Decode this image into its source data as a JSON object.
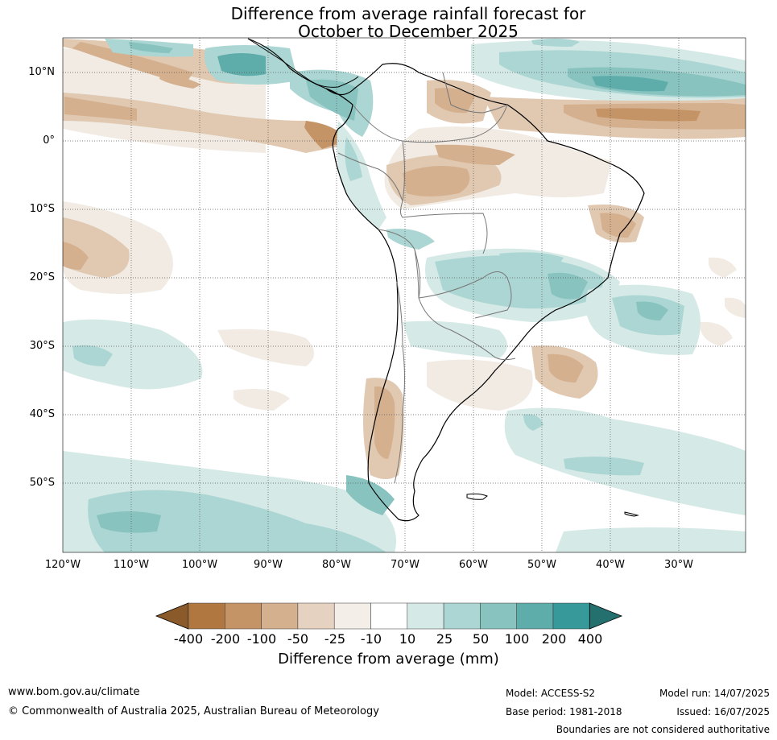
{
  "title_line1": "Difference from average rainfall forecast for",
  "title_line2": "October to December 2025",
  "lat_labels": [
    "10°N",
    "0°",
    "10°S",
    "20°S",
    "30°S",
    "40°S",
    "50°S"
  ],
  "lon_labels": [
    "120°W",
    "110°W",
    "100°W",
    "90°W",
    "80°W",
    "70°W",
    "60°W",
    "50°W",
    "40°W",
    "30°W"
  ],
  "colorbar": {
    "ticks": [
      "-400",
      "-200",
      "-100",
      "-50",
      "-25",
      "-10",
      "10",
      "25",
      "50",
      "100",
      "200",
      "400"
    ],
    "colors": [
      "#8a5a2b",
      "#b07840",
      "#c49366",
      "#d5b08e",
      "#e6d2c0",
      "#f3eee8",
      "#ffffff",
      "#d5e9e6",
      "#acd6d3",
      "#88c3c0",
      "#5eadab",
      "#37999a",
      "#23706f"
    ],
    "label": "Difference from average (mm)"
  },
  "footer": {
    "url": "www.bom.gov.au/climate",
    "copyright": "© Commonwealth of Australia 2025, Australian Bureau of Meteorology",
    "model": "Model: ACCESS-S2",
    "base_period": "Base period: 1981-2018",
    "model_run": "Model run: 14/07/2025",
    "issued": "Issued: 16/07/2025",
    "disclaimer": "Boundaries are not considered authoritative"
  }
}
